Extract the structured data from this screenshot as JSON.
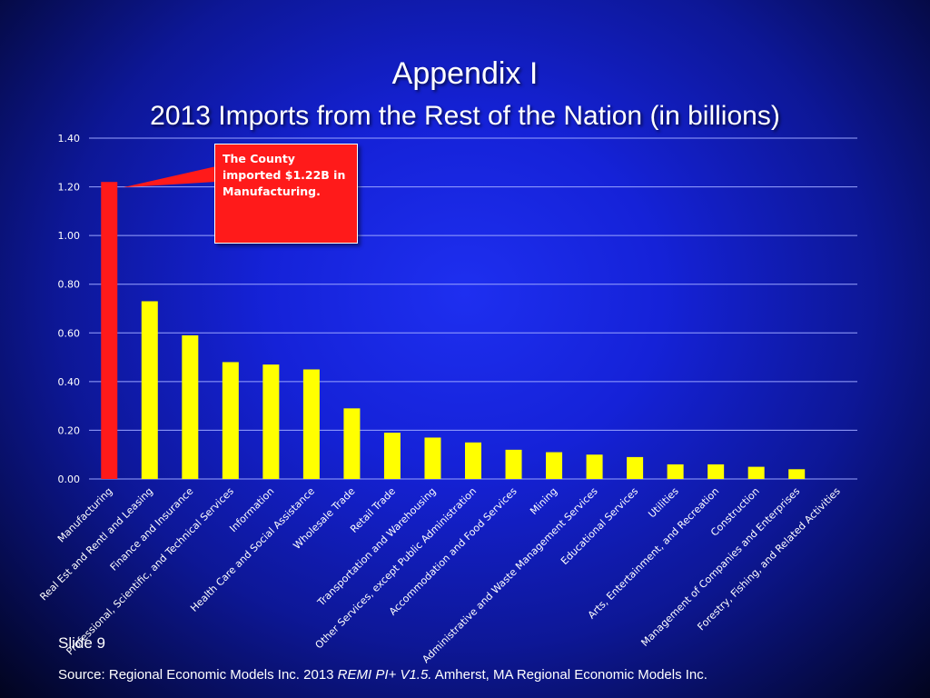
{
  "slide": {
    "title": "Appendix I",
    "number_label": "Slide 9",
    "source": {
      "prefix": "Source: Regional Economic Models Inc. 2013 ",
      "italic": "REMI PI+ V1.5.",
      "suffix": " Amherst, MA Regional Economic Models Inc."
    }
  },
  "callout": {
    "text": "The County imported $1.22B in Manufacturing."
  },
  "colors": {
    "highlight_bar": "#ff1a1a",
    "bar": "#ffff00",
    "gridline": "#9aa4ff",
    "axis_text": "#ffffff"
  },
  "chart_data": {
    "type": "bar",
    "title": "2013 Imports from the Rest of the Nation (in billions)",
    "xlabel": "",
    "ylabel": "",
    "ylim": [
      0,
      1.4
    ],
    "yticks": [
      "0.00",
      "0.20",
      "0.40",
      "0.60",
      "0.80",
      "1.00",
      "1.20",
      "1.40"
    ],
    "grid": true,
    "highlight_index": 0,
    "categories": [
      "Manufacturing",
      "Real Est and Rentl and Leasing",
      "Finance and Insurance",
      "Professional, Scientific, and Technical Services",
      "Information",
      "Health Care and Social Assistance",
      "Wholesale Trade",
      "Retail Trade",
      "Transportation and Warehousing",
      "Other Services, except Public Administration",
      "Accommodation and Food Services",
      "Mining",
      "Administrative and Waste Management Services",
      "Educational Services",
      "Utilities",
      "Arts, Entertainment, and Recreation",
      "Construction",
      "Management of Companies and Enterprises",
      "Forestry, Fishing, and Related Activities"
    ],
    "values": [
      1.22,
      0.73,
      0.59,
      0.48,
      0.47,
      0.45,
      0.29,
      0.19,
      0.17,
      0.15,
      0.12,
      0.11,
      0.1,
      0.09,
      0.06,
      0.06,
      0.05,
      0.04,
      0.0
    ]
  }
}
